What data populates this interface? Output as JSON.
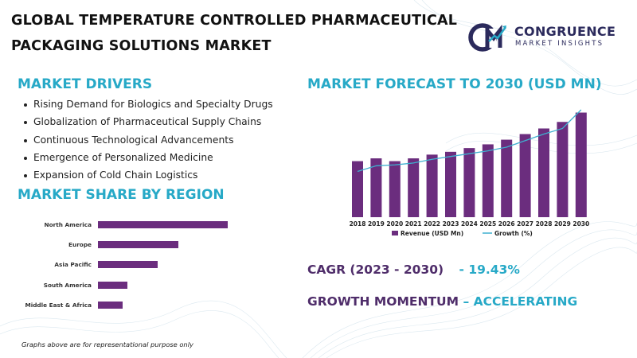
{
  "title": {
    "line1": "GLOBAL TEMPERATURE CONTROLLED PHARMACEUTICAL",
    "line2": "PACKAGING SOLUTIONS MARKET"
  },
  "logo": {
    "letters": "CM",
    "name": "CONGRUENCE",
    "sub": "MARKET INSIGHTS"
  },
  "drivers": {
    "heading": "MARKET DRIVERS",
    "items": [
      "Rising Demand for Biologics and Specialty Drugs",
      "Globalization of Pharmaceutical Supply Chains",
      "Continuous Technological Advancements",
      "Emergence of Personalized Medicine",
      "Expansion of Cold Chain Logistics"
    ]
  },
  "share": {
    "heading": "MARKET SHARE BY REGION"
  },
  "forecast": {
    "heading": "MARKET FORECAST TO 2030 (USD MN)"
  },
  "kpis": {
    "cagr_label": "CAGR (2023 - 2030)",
    "cagr_value": "- 19.43%",
    "momentum_label": "GROWTH MOMENTUM",
    "momentum_value": "– ACCELERATING"
  },
  "note": "Graphs above are for representational purpose only",
  "colors": {
    "bar": "#6b2d7e",
    "line": "#3fb0d0",
    "heading": "#27a9c7",
    "kpi_label": "#4f2d6a"
  },
  "chart_data": [
    {
      "type": "bar",
      "orientation": "horizontal",
      "title": "MARKET SHARE BY REGION",
      "categories": [
        "North America",
        "Europe",
        "Asia Pacific",
        "South America",
        "Middle East & Africa"
      ],
      "values": [
        100,
        62,
        46,
        23,
        19
      ],
      "value_axis_shown": false
    },
    {
      "type": "bar",
      "title": "MARKET FORECAST TO 2030 (USD MN)",
      "categories": [
        "2018",
        "2019",
        "2020",
        "2021",
        "2022",
        "2023",
        "2024",
        "2025",
        "2026",
        "2027",
        "2028",
        "2029",
        "2030"
      ],
      "series": [
        {
          "name": "Revenue (USD Mn)",
          "type": "bar",
          "values": [
            60,
            63,
            60,
            63,
            67,
            70,
            74,
            78,
            83,
            89,
            95,
            102,
            112
          ]
        },
        {
          "name": "Growth (%)",
          "type": "line",
          "values": [
            49,
            55,
            56,
            58,
            62,
            65,
            68,
            71,
            75,
            82,
            89,
            95,
            115
          ]
        }
      ],
      "ylim": [
        0,
        115
      ],
      "legend": "bottom"
    }
  ]
}
